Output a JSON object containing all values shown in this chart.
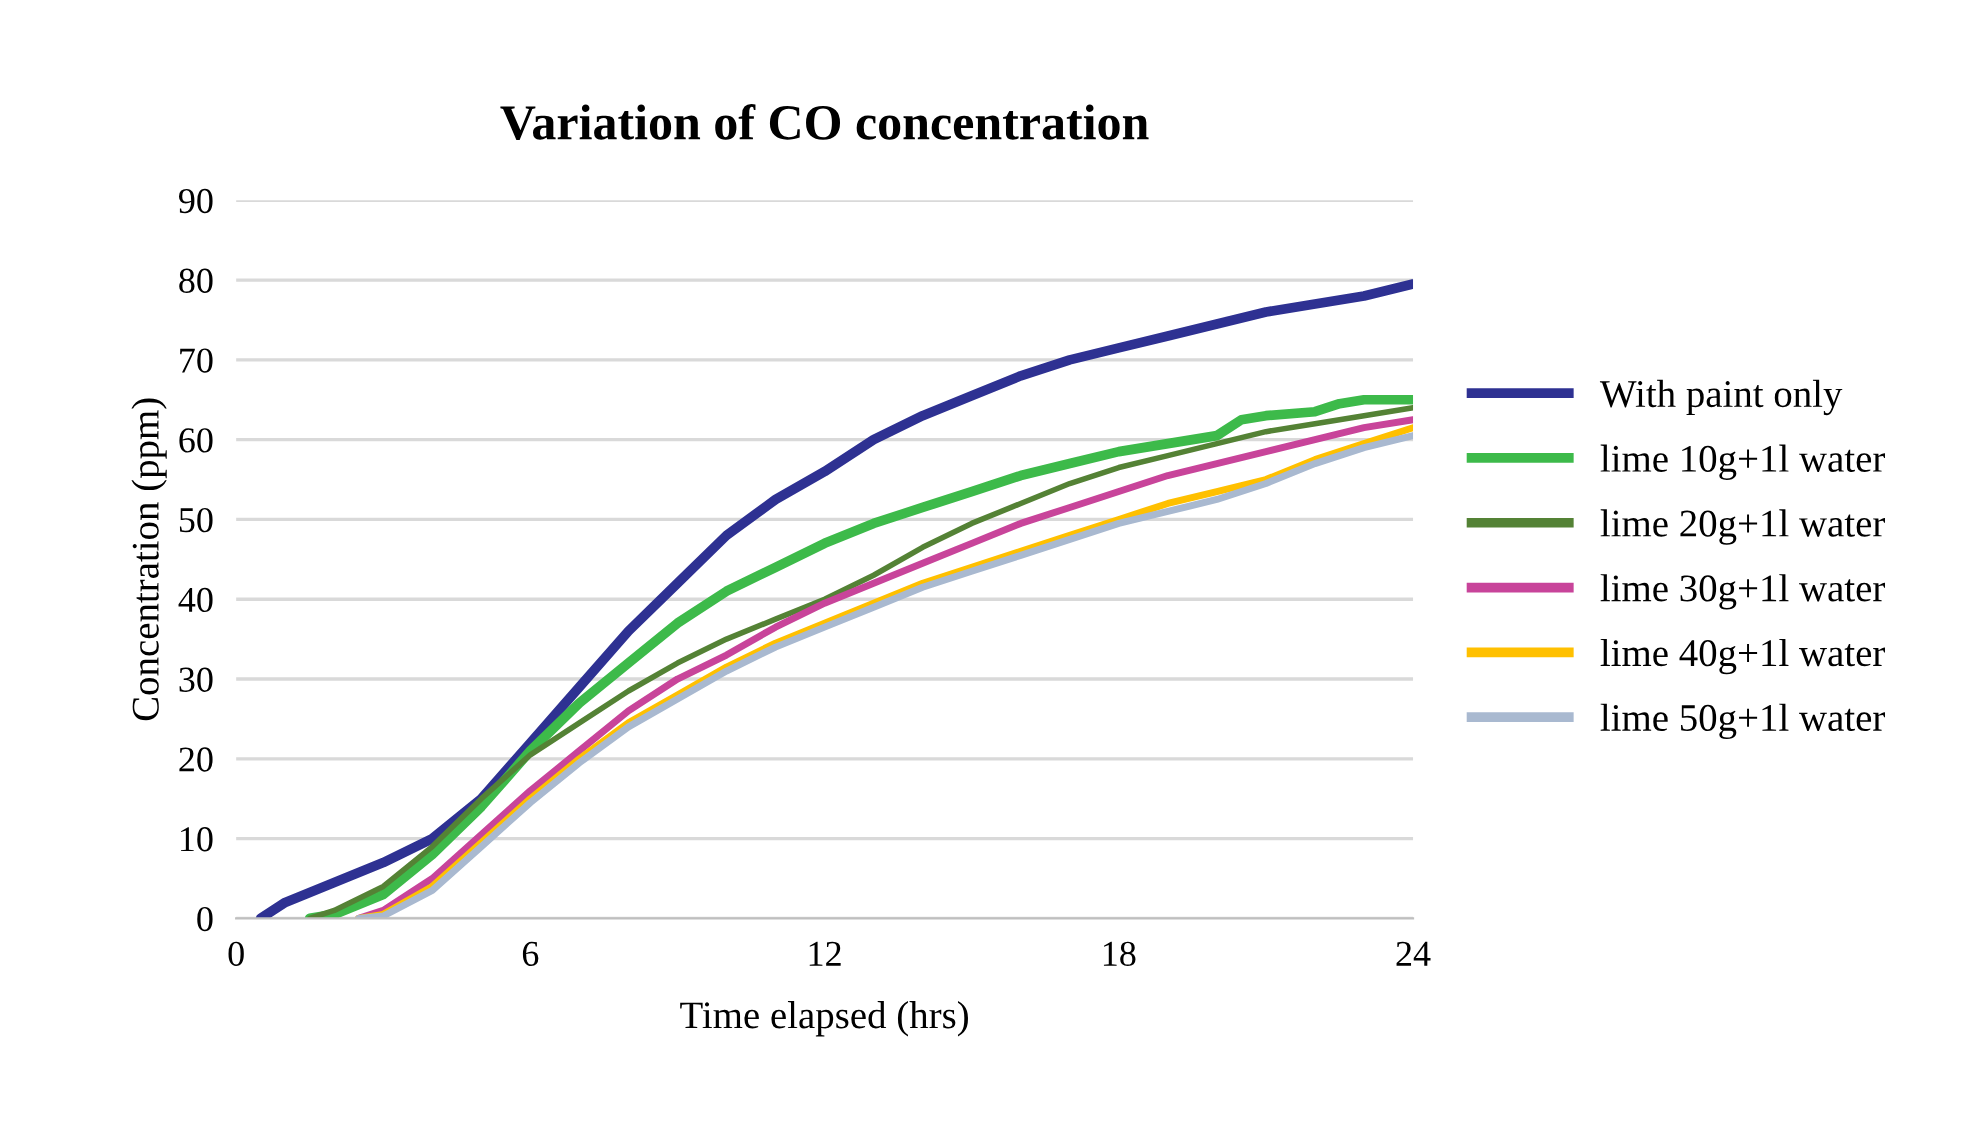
{
  "chart_data": {
    "type": "line",
    "title": "Variation of CO concentration",
    "xlabel": "Time elapsed (hrs)",
    "ylabel": "Concentration (ppm)",
    "xlim": [
      0,
      24
    ],
    "xticks": [
      0,
      6,
      12,
      18,
      24
    ],
    "ylim": [
      0,
      90
    ],
    "yticks": [
      0,
      10,
      20,
      30,
      40,
      50,
      60,
      70,
      80,
      90
    ],
    "grid": "y",
    "legend": "right",
    "marker": "none",
    "line_style": "solid",
    "series": [
      {
        "name": "With paint only",
        "color": "#2e3192",
        "x": [
          0.5,
          1,
          2,
          3,
          4,
          5,
          6,
          7,
          8,
          9,
          10,
          11,
          12,
          13,
          14,
          15,
          16,
          17,
          18,
          19,
          20,
          21,
          22,
          23,
          24
        ],
        "values": [
          0,
          2,
          4.5,
          7,
          10,
          15,
          22,
          29,
          36,
          42,
          48,
          52.5,
          56,
          60,
          63,
          65.5,
          68,
          70,
          71.5,
          73,
          74.5,
          76,
          77,
          78,
          79.5
        ]
      },
      {
        "name": "lime 10g+1l water",
        "color": "#3dba4a",
        "x": [
          1.5,
          2,
          3,
          4,
          5,
          6,
          7,
          8,
          9,
          10,
          11,
          12,
          13,
          14,
          15,
          16,
          17,
          18,
          19,
          20,
          20.5,
          21,
          22,
          22.5,
          23,
          24
        ],
        "values": [
          0,
          0.5,
          3,
          8,
          14,
          21,
          27,
          32,
          37,
          41,
          44,
          47,
          49.5,
          51.5,
          53.5,
          55.5,
          57,
          58.5,
          59.5,
          60.5,
          62.5,
          63,
          63.5,
          64.5,
          65,
          65
        ]
      },
      {
        "name": "lime 20g+1l water",
        "color": "#548235",
        "x": [
          1.5,
          2,
          3,
          4,
          5,
          6,
          7,
          8,
          9,
          10,
          11,
          12,
          13,
          14,
          15,
          16,
          17,
          18,
          19,
          20,
          21,
          22,
          23,
          24
        ],
        "values": [
          0,
          1,
          4,
          9,
          15,
          20.5,
          24.5,
          28.5,
          32,
          35,
          37.5,
          40,
          43,
          46.5,
          49.5,
          52,
          54.5,
          56.5,
          58,
          59.5,
          61,
          62,
          63,
          64
        ]
      },
      {
        "name": "lime 30g+1l water",
        "color": "#c8449a",
        "x": [
          2.5,
          3,
          4,
          5,
          6,
          7,
          8,
          9,
          10,
          11,
          12,
          13,
          14,
          15,
          16,
          17,
          18,
          19,
          20,
          21,
          22,
          23,
          24
        ],
        "values": [
          0,
          1,
          5,
          10.5,
          16,
          21,
          26,
          30,
          33,
          36.5,
          39.5,
          42,
          44.5,
          47,
          49.5,
          51.5,
          53.5,
          55.5,
          57,
          58.5,
          60,
          61.5,
          62.5
        ]
      },
      {
        "name": "lime 40g+1l water",
        "color": "#ffc000",
        "x": [
          2.5,
          3,
          4,
          5,
          6,
          7,
          8,
          9,
          10,
          11,
          12,
          13,
          14,
          15,
          16,
          17,
          18,
          19,
          20,
          21,
          22,
          23,
          24
        ],
        "values": [
          0,
          0.5,
          4,
          9.5,
          15,
          20,
          24.5,
          28,
          31.5,
          34.5,
          37,
          39.5,
          42,
          44,
          46,
          48,
          50,
          52,
          53.5,
          55,
          57.5,
          59.5,
          61.5
        ]
      },
      {
        "name": "lime 50g+1l water",
        "color": "#a9b9d0",
        "x": [
          2.5,
          3,
          4,
          5,
          6,
          7,
          8,
          9,
          10,
          11,
          12,
          13,
          14,
          15,
          16,
          17,
          18,
          19,
          20,
          21,
          22,
          23,
          24
        ],
        "values": [
          0,
          0.3,
          3.5,
          9,
          14.5,
          19.5,
          24,
          27.5,
          31,
          34,
          36.5,
          39,
          41.5,
          43.5,
          45.5,
          47.5,
          49.5,
          51,
          52.5,
          54.5,
          57,
          59,
          60.5
        ]
      }
    ]
  }
}
